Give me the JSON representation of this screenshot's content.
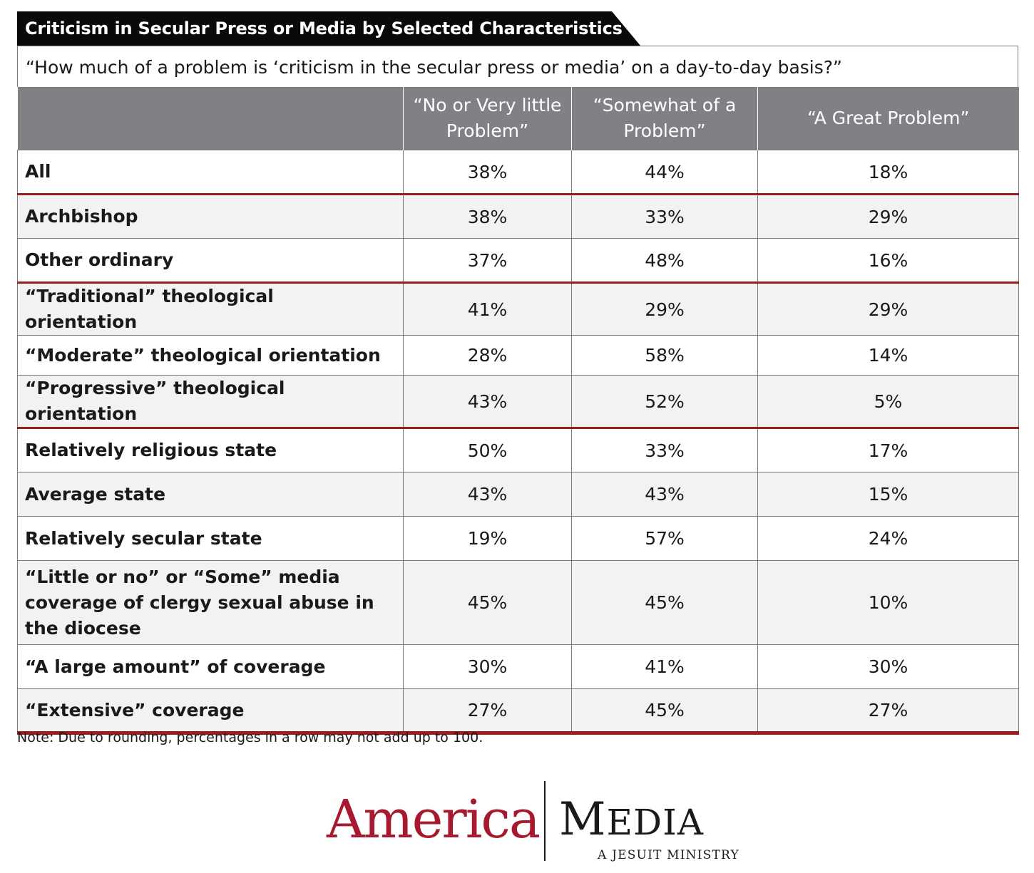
{
  "title": "Criticism in Secular Press or Media by Selected Characteristics",
  "note": "Note: Due to rounding, percentages in a row may not add up to 100.",
  "logo": {
    "left": "America",
    "right": "Media",
    "subtitle": "A JESUIT MINISTRY"
  },
  "colors": {
    "title_bg": "#0a0a0a",
    "header_bg": "#808184",
    "accent_red": "#9b1c1f",
    "logo_red": "#a6192e"
  },
  "chart_data": {
    "type": "table",
    "question": "“How much of a problem is ‘criticism in the secular press or media’ on a day-to-day basis?”",
    "columns": [
      "",
      "“No or Very little Problem”",
      "“Somewhat of a Problem”",
      "“A Great Problem”"
    ],
    "rows": [
      {
        "label": "All",
        "values": [
          "38%",
          "44%",
          "18%"
        ],
        "group_start": false
      },
      {
        "label": "Archbishop",
        "values": [
          "38%",
          "33%",
          "29%"
        ],
        "group_start": true
      },
      {
        "label": "Other ordinary",
        "values": [
          "37%",
          "48%",
          "16%"
        ],
        "group_start": false
      },
      {
        "label": "“Traditional” theological orientation",
        "values": [
          "41%",
          "29%",
          "29%"
        ],
        "group_start": true
      },
      {
        "label": "“Moderate” theological orientation",
        "values": [
          "28%",
          "58%",
          "14%"
        ],
        "group_start": false
      },
      {
        "label": "“Progressive” theological orientation",
        "values": [
          "43%",
          "52%",
          "5%"
        ],
        "group_start": false
      },
      {
        "label": "Relatively religious state",
        "values": [
          "50%",
          "33%",
          "17%"
        ],
        "group_start": true
      },
      {
        "label": "Average state",
        "values": [
          "43%",
          "43%",
          "15%"
        ],
        "group_start": false
      },
      {
        "label": "Relatively secular state",
        "values": [
          "19%",
          "57%",
          "24%"
        ],
        "group_start": false
      },
      {
        "label": "“Little or no” or “Some” media coverage of clergy sexual abuse in the diocese",
        "values": [
          "45%",
          "45%",
          "10%"
        ],
        "group_start": false
      },
      {
        "label": "“A large amount” of coverage",
        "values": [
          "30%",
          "41%",
          "30%"
        ],
        "group_start": false
      },
      {
        "label": "“Extensive” coverage",
        "values": [
          "27%",
          "45%",
          "27%"
        ],
        "group_start": false
      }
    ]
  }
}
